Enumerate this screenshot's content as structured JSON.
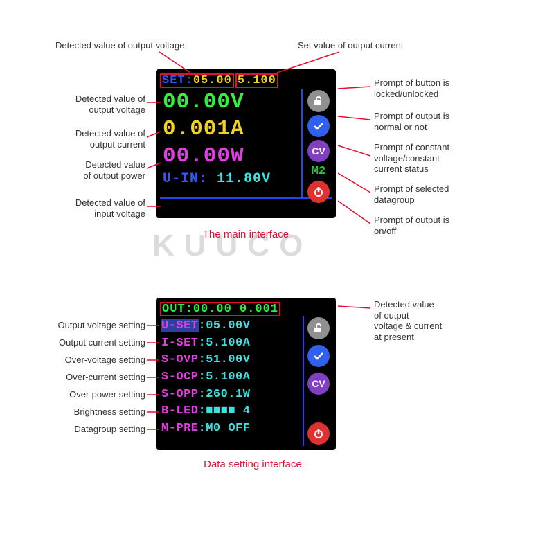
{
  "colors": {
    "leader": "#e01030",
    "screen_bg": "#000000",
    "blue": "#3355ff",
    "green": "#30f040",
    "yellow": "#f0d020",
    "magenta": "#e040e0",
    "cyan": "#40e0e0",
    "power_red": "#e03030",
    "check_blue": "#3060f0",
    "cv_purple": "#8040c0",
    "lock_gray": "#909090",
    "m2_green": "#30c040"
  },
  "top_annotations": {
    "set_voltage": "Detected value of output voltage",
    "set_current": "Set value of output current"
  },
  "left_main": [
    "Detected value of\noutput voltage",
    "Detected value of\noutput current",
    "Detected value\nof output power",
    "Detected value of\ninput voltage"
  ],
  "right_main": [
    "Prompt of button is\nlocked/unlocked",
    "Prompt of output is\nnormal or not",
    "Prompt of constant\nvoltage/constant\ncurrent status",
    "Prompt of selected\ndatagroup",
    "Prompt of output is\non/off"
  ],
  "main_screen": {
    "header_label": "SET:",
    "header_v": "05.00",
    "header_i": "5.100",
    "voltage": "00.00V",
    "current": "0.001A",
    "power": "00.00W",
    "uin_label": "U-IN:",
    "uin_value": "11.80V",
    "m2": "M2",
    "cv": "CV"
  },
  "main_caption": "The main interface",
  "left_setting": [
    "Output voltage setting",
    "Output current setting",
    "Over-voltage setting",
    "Over-current setting",
    "Over-power setting",
    "Brightness setting",
    "Datagroup setting"
  ],
  "right_setting": "Detected value\nof output\nvoltage & current\nat present",
  "setting_screen": {
    "out_label": "OUT:",
    "out_v": "00.00",
    "out_i": "0.001",
    "rows": [
      {
        "k": "U-SET",
        "v": "05.00V",
        "sel": true
      },
      {
        "k": "I-SET",
        "v": "5.100A"
      },
      {
        "k": "S-OVP",
        "v": "51.00V"
      },
      {
        "k": "S-OCP",
        "v": "5.100A"
      },
      {
        "k": "S-OPP",
        "v": "260.1W"
      },
      {
        "k": "B-LED",
        "v": "■■■■ 4"
      },
      {
        "k": "M-PRE",
        "v": "M0 OFF"
      }
    ]
  },
  "setting_caption": "Data setting interface",
  "watermark": "KUUCO"
}
